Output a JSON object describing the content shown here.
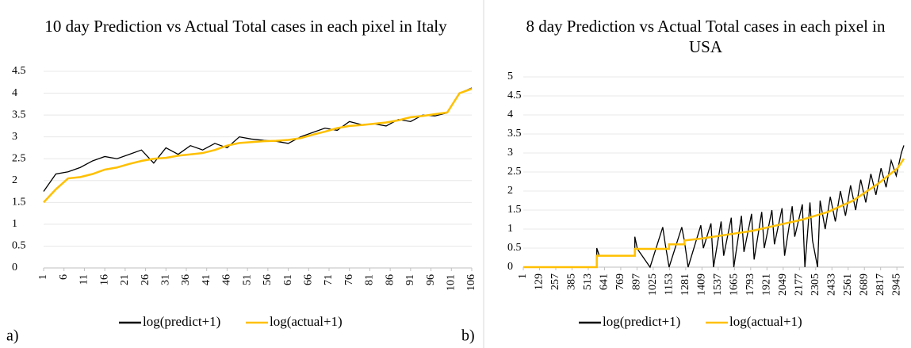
{
  "chart_data": [
    {
      "type": "line",
      "title": "10 day Prediction vs Actual Total cases in each pixel in Italy",
      "panel_label": "a)",
      "xlim": [
        1,
        106
      ],
      "xticks": [
        1,
        6,
        11,
        16,
        21,
        26,
        31,
        36,
        41,
        46,
        51,
        56,
        61,
        66,
        71,
        76,
        81,
        86,
        91,
        96,
        101,
        106
      ],
      "ylim": [
        0,
        4.5
      ],
      "yticks": [
        0,
        0.5,
        1,
        1.5,
        2,
        2.5,
        3,
        3.5,
        4,
        4.5
      ],
      "series": [
        {
          "name": "log(predict+1)",
          "color": "#000000",
          "x": [
            1,
            4,
            7,
            10,
            13,
            16,
            19,
            22,
            25,
            28,
            31,
            34,
            37,
            40,
            43,
            46,
            49,
            52,
            55,
            58,
            61,
            64,
            67,
            70,
            73,
            76,
            79,
            82,
            85,
            88,
            91,
            94,
            97,
            100,
            103,
            106
          ],
          "values": [
            1.75,
            2.15,
            2.2,
            2.3,
            2.45,
            2.55,
            2.5,
            2.6,
            2.7,
            2.4,
            2.75,
            2.6,
            2.8,
            2.7,
            2.85,
            2.75,
            3.0,
            2.95,
            2.92,
            2.9,
            2.85,
            3.0,
            3.1,
            3.2,
            3.15,
            3.35,
            3.28,
            3.3,
            3.25,
            3.4,
            3.35,
            3.5,
            3.48,
            3.55,
            4.0,
            4.12
          ]
        },
        {
          "name": "log(actual+1)",
          "color": "#ffc000",
          "x": [
            1,
            4,
            7,
            10,
            13,
            16,
            19,
            22,
            25,
            28,
            31,
            34,
            37,
            40,
            43,
            46,
            49,
            52,
            55,
            58,
            61,
            64,
            67,
            70,
            73,
            76,
            79,
            82,
            85,
            88,
            91,
            94,
            97,
            100,
            103,
            106
          ],
          "values": [
            1.5,
            1.8,
            2.05,
            2.08,
            2.15,
            2.25,
            2.3,
            2.38,
            2.45,
            2.5,
            2.52,
            2.57,
            2.6,
            2.63,
            2.7,
            2.8,
            2.86,
            2.88,
            2.9,
            2.91,
            2.93,
            2.97,
            3.05,
            3.12,
            3.2,
            3.25,
            3.27,
            3.3,
            3.33,
            3.38,
            3.45,
            3.48,
            3.52,
            3.56,
            4.0,
            4.1
          ]
        }
      ]
    },
    {
      "type": "line",
      "title": "8 day Prediction vs Actual Total cases in each pixel in USA",
      "panel_label": "b)",
      "xlim": [
        1,
        3000
      ],
      "xticks": [
        1,
        129,
        257,
        385,
        513,
        641,
        769,
        897,
        1025,
        1153,
        1281,
        1409,
        1537,
        1665,
        1793,
        1921,
        2049,
        2177,
        2305,
        2433,
        2561,
        2689,
        2817,
        2945
      ],
      "ylim": [
        0,
        5
      ],
      "yticks": [
        0,
        0.5,
        1,
        1.5,
        2,
        2.5,
        3,
        3.5,
        4,
        4.5,
        5
      ],
      "series": [
        {
          "name": "log(predict+1)",
          "color": "#000000",
          "x": [
            1,
            580,
            580,
            600,
            880,
            880,
            900,
            1000,
            1100,
            1120,
            1150,
            1250,
            1270,
            1300,
            1400,
            1420,
            1480,
            1500,
            1560,
            1580,
            1640,
            1660,
            1720,
            1740,
            1800,
            1820,
            1880,
            1900,
            1960,
            1980,
            2040,
            2060,
            2120,
            2140,
            2200,
            2220,
            2260,
            2280,
            2320,
            2340,
            2380,
            2420,
            2460,
            2500,
            2540,
            2580,
            2620,
            2660,
            2700,
            2740,
            2780,
            2820,
            2860,
            2900,
            2940,
            2980,
            3000
          ],
          "values": [
            0,
            0,
            0.5,
            0.3,
            0.3,
            0.8,
            0.48,
            0,
            1.05,
            0.6,
            0,
            1.05,
            0.7,
            0,
            1.1,
            0.5,
            1.15,
            0,
            1.2,
            0.3,
            1.3,
            0,
            1.35,
            0.4,
            1.4,
            0.2,
            1.45,
            0.5,
            1.5,
            0.6,
            1.55,
            0.3,
            1.6,
            0.8,
            1.65,
            0,
            1.7,
            0.7,
            0,
            1.75,
            1.0,
            1.85,
            1.2,
            2.0,
            1.35,
            2.15,
            1.5,
            2.3,
            1.7,
            2.45,
            1.9,
            2.6,
            2.1,
            2.8,
            2.4,
            3.0,
            3.2
          ]
        },
        {
          "name": "log(actual+1)",
          "color": "#ffc000",
          "x": [
            1,
            580,
            580,
            880,
            880,
            1150,
            1150,
            1270,
            1270,
            1400,
            1600,
            1800,
            2000,
            2200,
            2400,
            2600,
            2800,
            2950,
            3000
          ],
          "values": [
            0,
            0,
            0.3,
            0.3,
            0.48,
            0.48,
            0.6,
            0.6,
            0.7,
            0.75,
            0.85,
            0.95,
            1.1,
            1.25,
            1.45,
            1.75,
            2.2,
            2.6,
            2.85
          ]
        }
      ]
    }
  ]
}
